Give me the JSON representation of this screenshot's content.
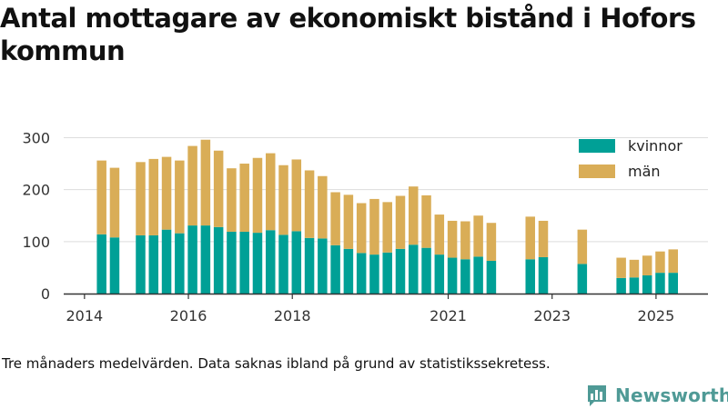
{
  "title": "Antal mottagare av ekonomiskt bistånd i Hofors kommun",
  "footnote": "Tre månaders medelvärden. Data saknas ibland på grund av statistikssekretess.",
  "brand": {
    "name": "Newsworthy",
    "icon": "bar-chart-speech-bubble-icon",
    "color": "#4f9a96"
  },
  "colors": {
    "kvinnor": "#00a096",
    "man": "#d9ad57",
    "grid": "#dddddd",
    "axis": "#333333"
  },
  "chart_data": {
    "type": "bar",
    "stacked": true,
    "title": "Antal mottagare av ekonomiskt bistånd i Hofors kommun",
    "xlabel": "",
    "ylabel": "",
    "ylim": [
      0,
      320
    ],
    "yticks": [
      0,
      100,
      200,
      300
    ],
    "xlim": [
      2013.6,
      2026.0
    ],
    "xticks": [
      2014,
      2016,
      2018,
      2021,
      2023,
      2025
    ],
    "legend_position": "top-right",
    "grid": "horizontal",
    "x": [
      2014.33,
      2014.58,
      2015.08,
      2015.33,
      2015.58,
      2015.83,
      2016.08,
      2016.33,
      2016.58,
      2016.83,
      2017.08,
      2017.33,
      2017.58,
      2017.83,
      2018.08,
      2018.33,
      2018.58,
      2018.83,
      2019.08,
      2019.33,
      2019.58,
      2019.83,
      2020.08,
      2020.33,
      2020.58,
      2020.83,
      2021.08,
      2021.33,
      2021.58,
      2021.83,
      2022.58,
      2022.83,
      2023.58,
      2024.33,
      2024.58,
      2024.83,
      2025.08,
      2025.33
    ],
    "series": [
      {
        "name": "kvinnor",
        "color": "#00a096",
        "values": [
          114,
          108,
          112,
          112,
          123,
          116,
          131,
          131,
          128,
          119,
          119,
          117,
          122,
          113,
          120,
          107,
          106,
          93,
          86,
          78,
          75,
          79,
          86,
          94,
          88,
          75,
          69,
          66,
          71,
          63,
          66,
          70,
          57,
          30,
          31,
          35,
          40,
          40
        ]
      },
      {
        "name": "män",
        "color": "#d9ad57",
        "values": [
          142,
          134,
          141,
          147,
          140,
          140,
          153,
          165,
          147,
          122,
          131,
          144,
          148,
          134,
          138,
          130,
          120,
          102,
          104,
          96,
          107,
          97,
          102,
          112,
          101,
          77,
          71,
          73,
          79,
          73,
          82,
          70,
          66,
          39,
          34,
          38,
          41,
          45
        ]
      }
    ]
  }
}
